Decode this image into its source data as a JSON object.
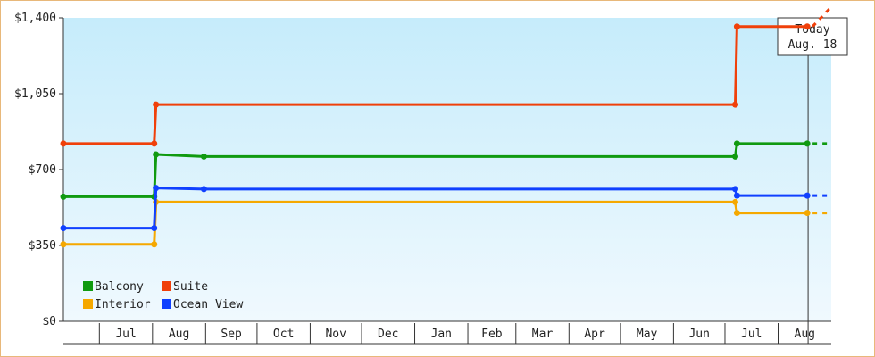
{
  "chart_data": {
    "type": "line",
    "step": true,
    "x_unit": "date",
    "y_ticks": [
      {
        "value": 0,
        "label": "$0"
      },
      {
        "value": 350,
        "label": "$350"
      },
      {
        "value": 700,
        "label": "$700"
      },
      {
        "value": 1050,
        "label": "$1,050"
      },
      {
        "value": 1400,
        "label": "$1,400"
      }
    ],
    "ylim": [
      0,
      1400
    ],
    "x_range": [
      "2021-06-10",
      "2022-08-31"
    ],
    "x_months": [
      {
        "label": "Jul",
        "start": "2021-07-01",
        "end": "2021-07-31"
      },
      {
        "label": "Aug",
        "start": "2021-08-01",
        "end": "2021-08-31"
      },
      {
        "label": "Sep",
        "start": "2021-09-01",
        "end": "2021-09-30"
      },
      {
        "label": "Oct",
        "start": "2021-10-01",
        "end": "2021-10-31"
      },
      {
        "label": "Nov",
        "start": "2021-11-01",
        "end": "2021-11-30"
      },
      {
        "label": "Dec",
        "start": "2021-12-01",
        "end": "2021-12-31"
      },
      {
        "label": "Jan",
        "start": "2022-01-01",
        "end": "2022-01-31"
      },
      {
        "label": "Feb",
        "start": "2022-02-01",
        "end": "2022-02-28"
      },
      {
        "label": "Mar",
        "start": "2022-03-01",
        "end": "2022-03-31"
      },
      {
        "label": "Apr",
        "start": "2022-04-01",
        "end": "2022-04-30"
      },
      {
        "label": "May",
        "start": "2022-05-01",
        "end": "2022-05-31"
      },
      {
        "label": "Jun",
        "start": "2022-06-01",
        "end": "2022-06-30"
      },
      {
        "label": "Jul",
        "start": "2022-07-01",
        "end": "2022-07-31"
      },
      {
        "label": "Aug",
        "start": "2022-08-01",
        "end": "2022-08-31"
      }
    ],
    "today": {
      "date": "2022-08-18",
      "label": "Today",
      "date_label": "Aug. 18"
    },
    "grid": false,
    "background": "light-blue gradient",
    "legend_position": "bottom-left",
    "series": [
      {
        "name": "Balcony",
        "color": "#109a10",
        "points": [
          {
            "date": "2021-06-10",
            "value": 575
          },
          {
            "date": "2021-08-02",
            "value": 575
          },
          {
            "date": "2021-08-03",
            "value": 770
          },
          {
            "date": "2021-08-31",
            "value": 760
          },
          {
            "date": "2022-07-07",
            "value": 760
          },
          {
            "date": "2022-07-08",
            "value": 820
          },
          {
            "date": "2022-08-18",
            "value": 820
          }
        ]
      },
      {
        "name": "Suite",
        "color": "#f0400a",
        "points": [
          {
            "date": "2021-06-10",
            "value": 820
          },
          {
            "date": "2021-08-02",
            "value": 820
          },
          {
            "date": "2021-08-03",
            "value": 1000
          },
          {
            "date": "2022-07-07",
            "value": 1000
          },
          {
            "date": "2022-07-08",
            "value": 1360
          },
          {
            "date": "2022-08-18",
            "value": 1360
          }
        ]
      },
      {
        "name": "Interior",
        "color": "#f5a800",
        "points": [
          {
            "date": "2021-06-10",
            "value": 355
          },
          {
            "date": "2021-08-02",
            "value": 355
          },
          {
            "date": "2021-08-03",
            "value": 550
          },
          {
            "date": "2022-07-07",
            "value": 550
          },
          {
            "date": "2022-07-08",
            "value": 500
          },
          {
            "date": "2022-08-18",
            "value": 500
          }
        ]
      },
      {
        "name": "Ocean View",
        "color": "#1040ff",
        "points": [
          {
            "date": "2021-06-10",
            "value": 430
          },
          {
            "date": "2021-08-02",
            "value": 430
          },
          {
            "date": "2021-08-03",
            "value": 615
          },
          {
            "date": "2021-08-31",
            "value": 610
          },
          {
            "date": "2022-07-07",
            "value": 610
          },
          {
            "date": "2022-07-08",
            "value": 580
          },
          {
            "date": "2022-08-18",
            "value": 580
          }
        ]
      }
    ]
  }
}
